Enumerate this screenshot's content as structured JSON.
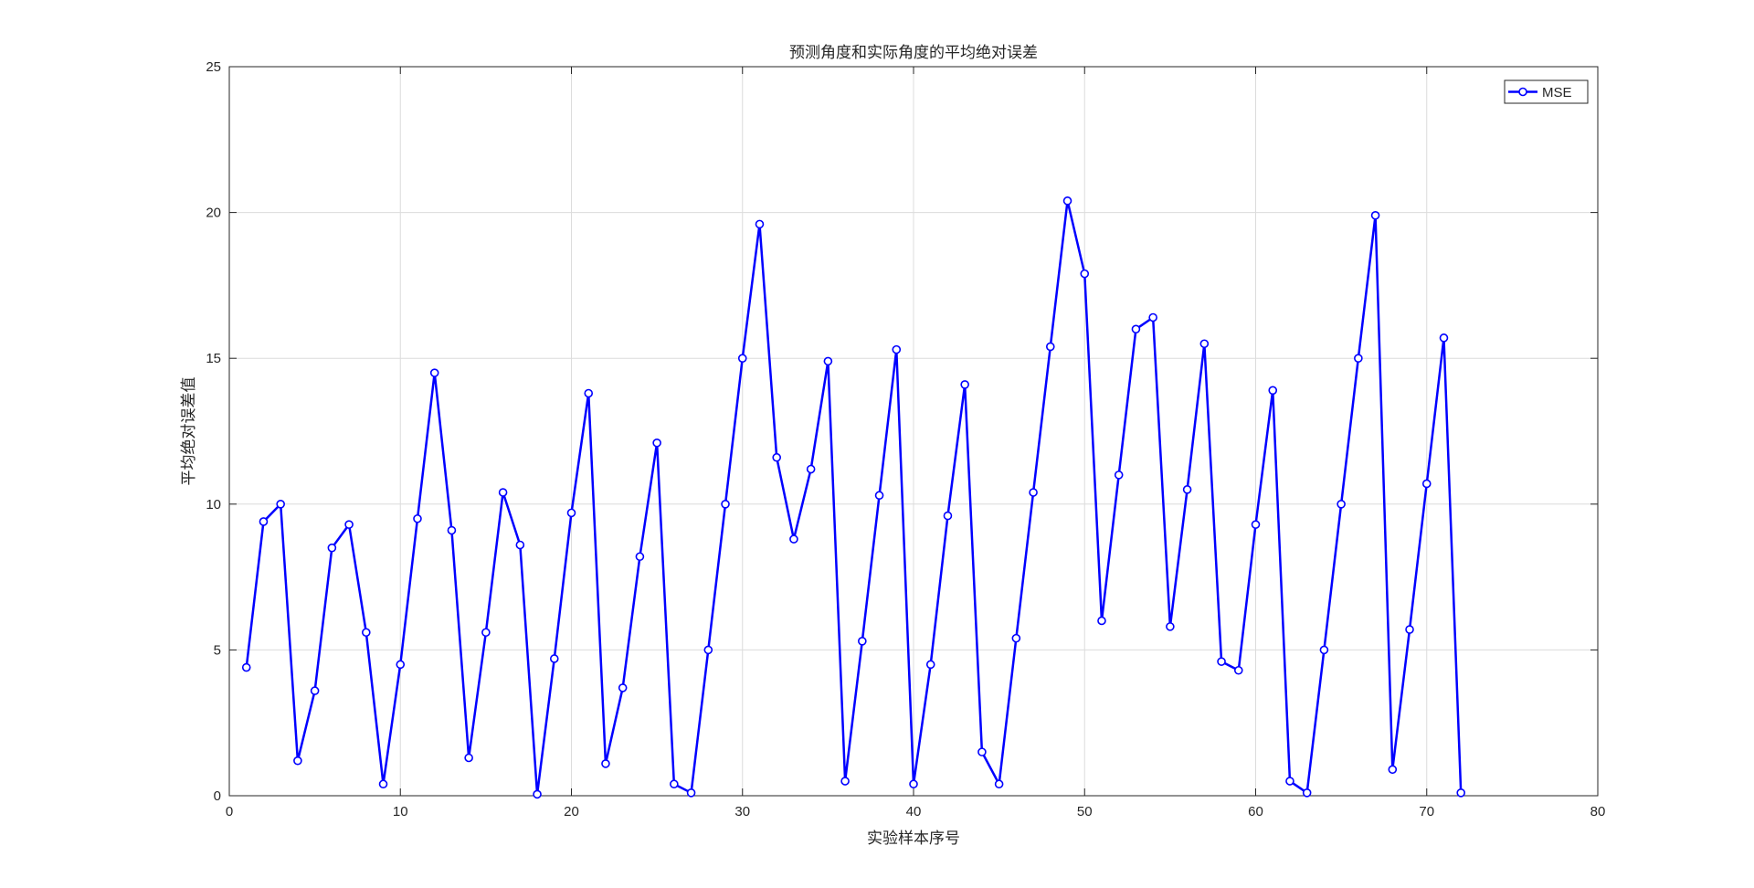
{
  "chart_data": {
    "type": "line",
    "title": "预测角度和实际角度的平均绝对误差",
    "xlabel": "实验样本序号",
    "ylabel": "平均绝对误差值",
    "xlim": [
      0,
      80
    ],
    "ylim": [
      0,
      25
    ],
    "xticks": [
      "0",
      "10",
      "20",
      "30",
      "40",
      "50",
      "60",
      "70",
      "80"
    ],
    "yticks": [
      "0",
      "5",
      "10",
      "15",
      "20",
      "25"
    ],
    "grid": true,
    "legend_position": "top-right",
    "series": [
      {
        "name": "MSE",
        "color": "#0000ff",
        "marker": "circle",
        "x": [
          1,
          2,
          3,
          4,
          5,
          6,
          7,
          8,
          9,
          10,
          11,
          12,
          13,
          14,
          15,
          16,
          17,
          18,
          19,
          20,
          21,
          22,
          23,
          24,
          25,
          26,
          27,
          28,
          29,
          30,
          31,
          32,
          33,
          34,
          35,
          36,
          37,
          38,
          39,
          40,
          41,
          42,
          43,
          44,
          45,
          46,
          47,
          48,
          49,
          50,
          51,
          52,
          53,
          54,
          55,
          56,
          57,
          58,
          59,
          60,
          61,
          62,
          63,
          64,
          65,
          66,
          67,
          68,
          69,
          70,
          71,
          72
        ],
        "y": [
          4.4,
          9.4,
          10.0,
          1.2,
          3.6,
          8.5,
          9.3,
          5.6,
          0.4,
          4.5,
          9.5,
          14.5,
          9.1,
          1.3,
          5.6,
          10.4,
          8.6,
          0.05,
          4.7,
          9.7,
          13.8,
          1.1,
          3.7,
          8.2,
          12.1,
          0.4,
          0.1,
          5.0,
          10.0,
          15.0,
          19.6,
          11.6,
          8.8,
          11.2,
          14.9,
          0.5,
          5.3,
          10.3,
          15.3,
          0.4,
          4.5,
          9.6,
          14.1,
          1.5,
          0.4,
          5.4,
          10.4,
          15.4,
          20.4,
          17.9,
          6.0,
          11.0,
          16.0,
          16.4,
          5.8,
          10.5,
          15.5,
          4.6,
          4.3,
          9.3,
          13.9,
          0.5,
          0.1,
          5.0,
          10.0,
          15.0,
          19.9,
          0.9,
          5.7,
          10.7,
          15.7,
          0.1
        ]
      }
    ]
  }
}
